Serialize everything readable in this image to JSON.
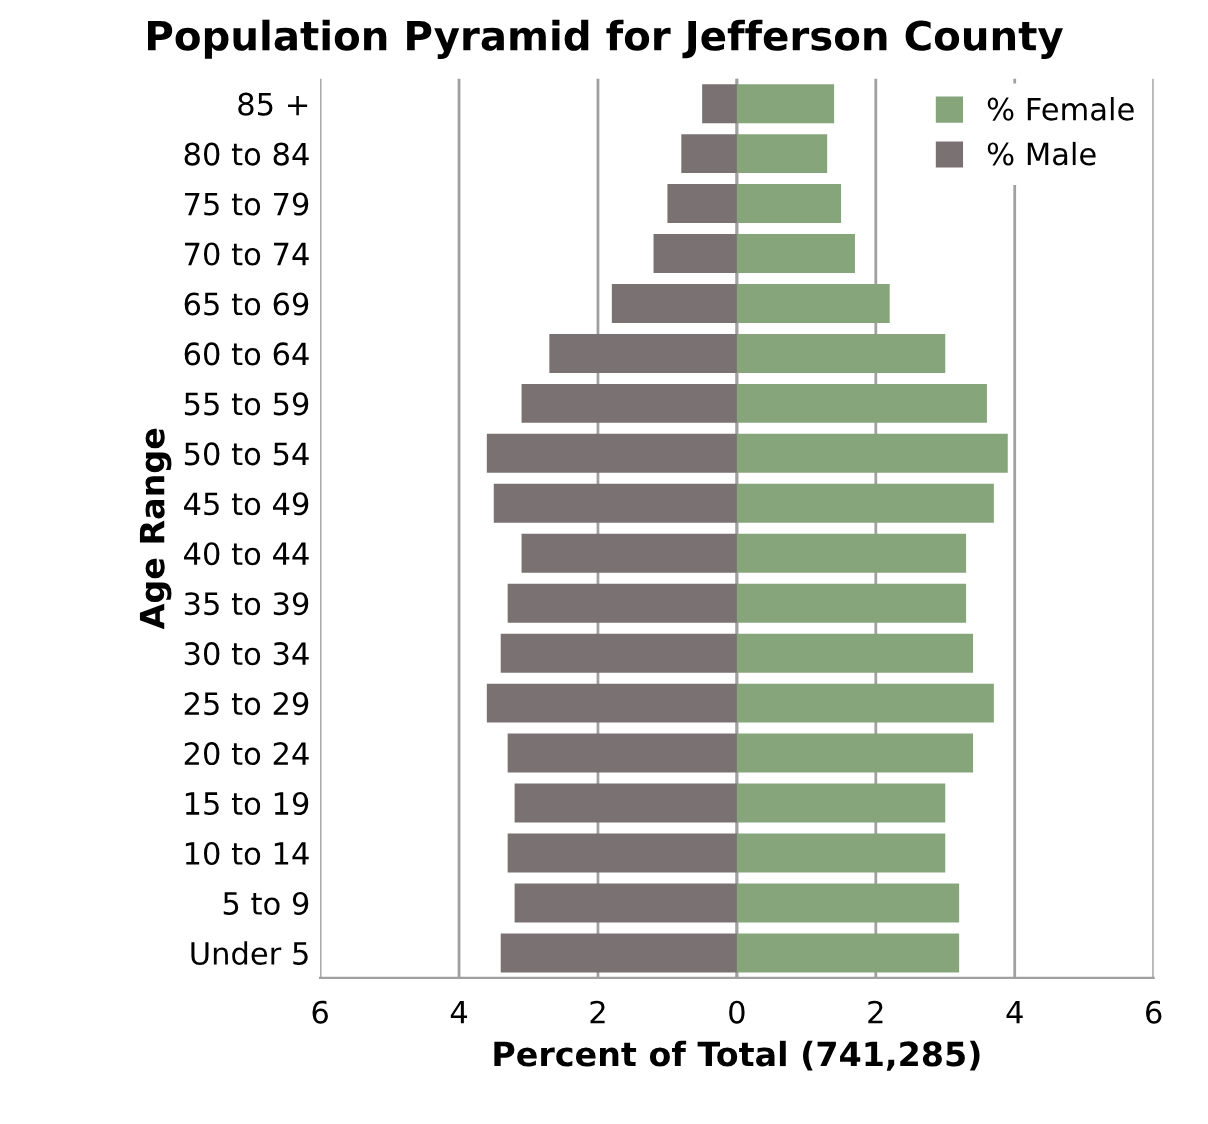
{
  "chart_data": {
    "type": "bar",
    "orientation": "horizontal",
    "title": "Population Pyramid for Jefferson County",
    "xlabel": "Percent of Total (741,285)",
    "ylabel": "Age Range",
    "categories": [
      "85 +",
      "80 to 84",
      "75 to 79",
      "70 to 74",
      "65 to 69",
      "60 to 64",
      "55 to 59",
      "50 to 54",
      "45 to 49",
      "40 to 44",
      "35 to 39",
      "30 to 34",
      "25 to 29",
      "20 to 24",
      "15 to 19",
      "10 to 14",
      "5 to 9",
      "Under 5"
    ],
    "series": [
      {
        "name": "% Female",
        "color": "#87a57b",
        "values": [
          1.4,
          1.3,
          1.5,
          1.7,
          2.2,
          3.0,
          3.6,
          3.9,
          3.7,
          3.3,
          3.3,
          3.4,
          3.7,
          3.4,
          3.0,
          3.0,
          3.2,
          3.2
        ]
      },
      {
        "name": "% Male",
        "color": "#7a7173",
        "values": [
          -0.5,
          -0.8,
          -1.0,
          -1.2,
          -1.8,
          -2.7,
          -3.1,
          -3.6,
          -3.5,
          -3.1,
          -3.3,
          -3.4,
          -3.6,
          -3.3,
          -3.2,
          -3.3,
          -3.2,
          -3.4
        ]
      }
    ],
    "xlim": [
      -6,
      6
    ],
    "xticks": [
      {
        "value": -6,
        "label": "6"
      },
      {
        "value": -4,
        "label": "4"
      },
      {
        "value": -2,
        "label": "2"
      },
      0,
      2,
      4,
      6
    ],
    "grid": "x",
    "legend": "top right",
    "stacked": true
  }
}
